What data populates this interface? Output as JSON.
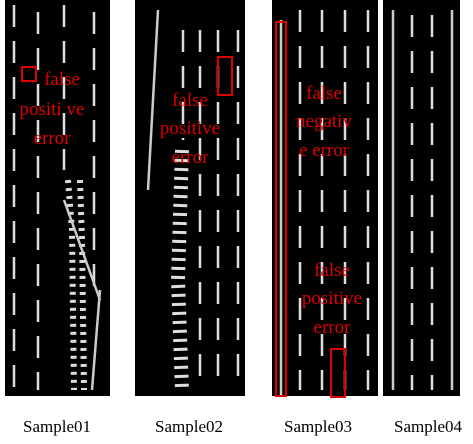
{
  "panels": [
    {
      "caption": "Sample01",
      "annotations": [
        [
          "false",
          "positi ve",
          "error"
        ]
      ]
    },
    {
      "caption": "Sample02",
      "annotations": [
        [
          "false",
          "positive",
          "error"
        ]
      ]
    },
    {
      "caption": "Sample03",
      "annotations": [
        [
          "false",
          "negativ",
          "e error"
        ],
        [
          "false",
          "positive",
          "error"
        ]
      ]
    },
    {
      "caption": "Sample04",
      "annotations": []
    }
  ]
}
